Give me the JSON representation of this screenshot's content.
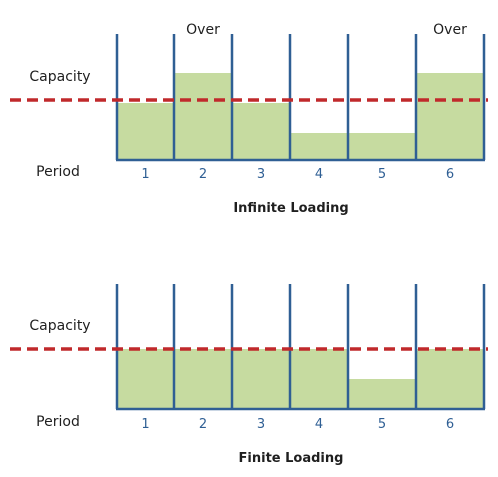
{
  "colors": {
    "bar_fill": "#c6dba0",
    "axis_line": "#2f5f94",
    "capacity_line": "#c0292b",
    "text": "#1f1f1f",
    "tick_text": "#2f5f94"
  },
  "chart_data": [
    {
      "type": "bar",
      "title": "Infinite Loading",
      "capacity_label": "Capacity",
      "period_label": "Period",
      "categories": [
        "1",
        "2",
        "3",
        "4",
        "5",
        "6"
      ],
      "values": [
        0.95,
        1.45,
        0.95,
        0.45,
        0.45,
        1.45
      ],
      "capacity": 1.0,
      "ylim": [
        0,
        2.1
      ],
      "annotations": [
        {
          "category": "2",
          "text": "Over"
        },
        {
          "category": "6",
          "text": "Over"
        }
      ]
    },
    {
      "type": "bar",
      "title": "Finite Loading",
      "capacity_label": "Capacity",
      "period_label": "Period",
      "categories": [
        "1",
        "2",
        "3",
        "4",
        "5",
        "6"
      ],
      "values": [
        1.0,
        1.0,
        1.0,
        1.0,
        0.5,
        1.0
      ],
      "capacity": 1.0,
      "ylim": [
        0,
        2.1
      ],
      "annotations": []
    }
  ]
}
